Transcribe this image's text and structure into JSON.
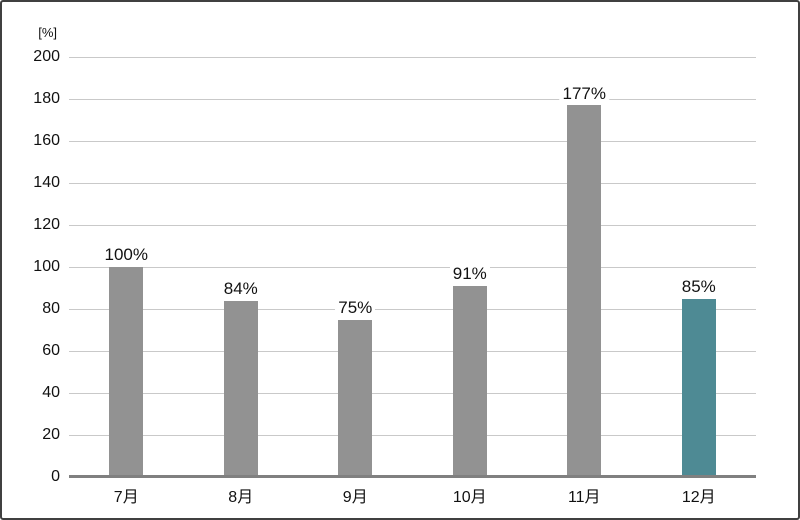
{
  "chart_data": {
    "type": "bar",
    "title": "",
    "unit_label": "[%]",
    "categories": [
      "7月",
      "8月",
      "9月",
      "10月",
      "11月",
      "12月"
    ],
    "values": [
      100,
      84,
      75,
      91,
      177,
      85
    ],
    "data_labels": [
      "100%",
      "84%",
      "75%",
      "91%",
      "177%",
      "85%"
    ],
    "ylim": [
      0,
      200
    ],
    "ytick_step": 20,
    "yticks": [
      0,
      20,
      40,
      60,
      80,
      100,
      120,
      140,
      160,
      180,
      200
    ],
    "grid": true,
    "legend": "none",
    "highlight_index": 5,
    "colors": {
      "bar_default": "#929292",
      "bar_highlight": "#4e8a94",
      "gridline": "#c9c9c9",
      "axis_line": "#808080",
      "text": "#111111",
      "border": "#404040",
      "background": "#ffffff"
    }
  }
}
